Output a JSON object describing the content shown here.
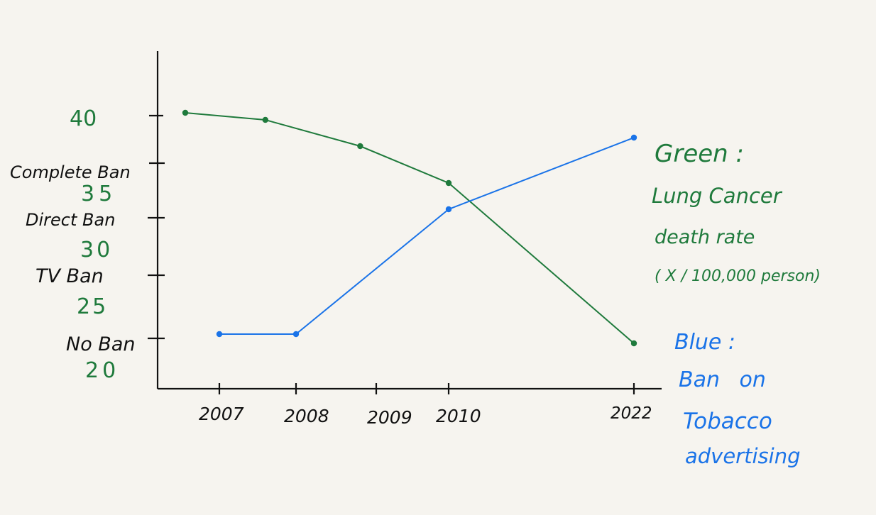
{
  "colors": {
    "background": "#f6f4ef",
    "axis": "#111111",
    "green": "#1f7a3c",
    "blue": "#1a73e8",
    "ink": "#111111"
  },
  "chart_data": {
    "type": "line",
    "x_ticks": [
      "2007",
      "2008",
      "2009",
      "2010",
      "2022"
    ],
    "y_left_ticks_green": [
      "40",
      "35",
      "30",
      "25",
      "20"
    ],
    "y_left_ticks_ban": [
      "Complete Ban",
      "Direct Ban",
      "TV Ban",
      "No Ban"
    ],
    "series": [
      {
        "name": "Green",
        "color": "#1f7a3c",
        "points": [
          {
            "x": 2006.5,
            "y": 40.2
          },
          {
            "x": 2007.6,
            "y": 39.6
          },
          {
            "x": 2008.8,
            "y": 37.4
          },
          {
            "x": 2010.0,
            "y": 34.3
          },
          {
            "x": 2022.0,
            "y": 19.9
          }
        ]
      },
      {
        "name": "Blue",
        "color": "#1a73e8",
        "points": [
          {
            "x": 2007,
            "y": "No Ban"
          },
          {
            "x": 2008,
            "y": "No Ban"
          },
          {
            "x": 2010,
            "y": "Direct Ban"
          },
          {
            "x": 2022,
            "y": "Complete Ban+"
          }
        ]
      }
    ],
    "legend": {
      "green_title": "Green :",
      "green_desc": [
        "Lung Cancer",
        "death rate",
        "( X / 100,000 person)"
      ],
      "blue_title": "Blue :",
      "blue_desc": [
        "Ban on",
        "Tobacco",
        "advertising"
      ]
    }
  }
}
